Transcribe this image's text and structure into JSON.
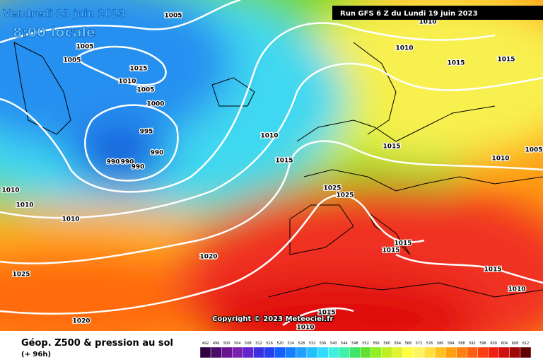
{
  "title": "Vendredi 23 juin 2023",
  "time": "8:00 locale",
  "run": "Run GFS 6 Z du Lundi 19 juin 2023",
  "copyright": "Copyright © 2023 Meteociel.fr",
  "legend": {
    "title": "Géop. Z500 & pression au sol",
    "subtitle": "(+ 96h)",
    "scale": [
      492,
      496,
      500,
      504,
      508,
      512,
      516,
      520,
      524,
      528,
      532,
      536,
      540,
      544,
      548,
      552,
      556,
      560,
      564,
      568,
      572,
      576,
      580,
      584,
      588,
      592,
      596,
      600,
      604,
      608,
      612
    ],
    "colors": [
      "#300040",
      "#4a0c68",
      "#6a1490",
      "#7c20b0",
      "#6424d0",
      "#3a30e0",
      "#2440f0",
      "#1460ff",
      "#1480ff",
      "#20a0ff",
      "#20c0ff",
      "#30dcff",
      "#40f0e0",
      "#40f0a8",
      "#40e468",
      "#60e030",
      "#90f020",
      "#c0f020",
      "#e0f430",
      "#ffff40",
      "#fff460",
      "#ffe040",
      "#ffc020",
      "#ffa010",
      "#ff8010",
      "#ff6010",
      "#ff4010",
      "#f02010",
      "#d01010",
      "#a00808",
      "#600000"
    ]
  },
  "isobar_labels": [
    1005,
    1010,
    1005,
    1010,
    1005,
    1015,
    1015,
    1015,
    1010,
    1005,
    1000,
    1010,
    995,
    990,
    1015,
    1005,
    990,
    990,
    990,
    1015,
    1010,
    1025,
    1025,
    1010,
    1010,
    1010,
    1015,
    1015,
    1020,
    1025,
    1015,
    1010,
    1015,
    1020,
    1010
  ]
}
